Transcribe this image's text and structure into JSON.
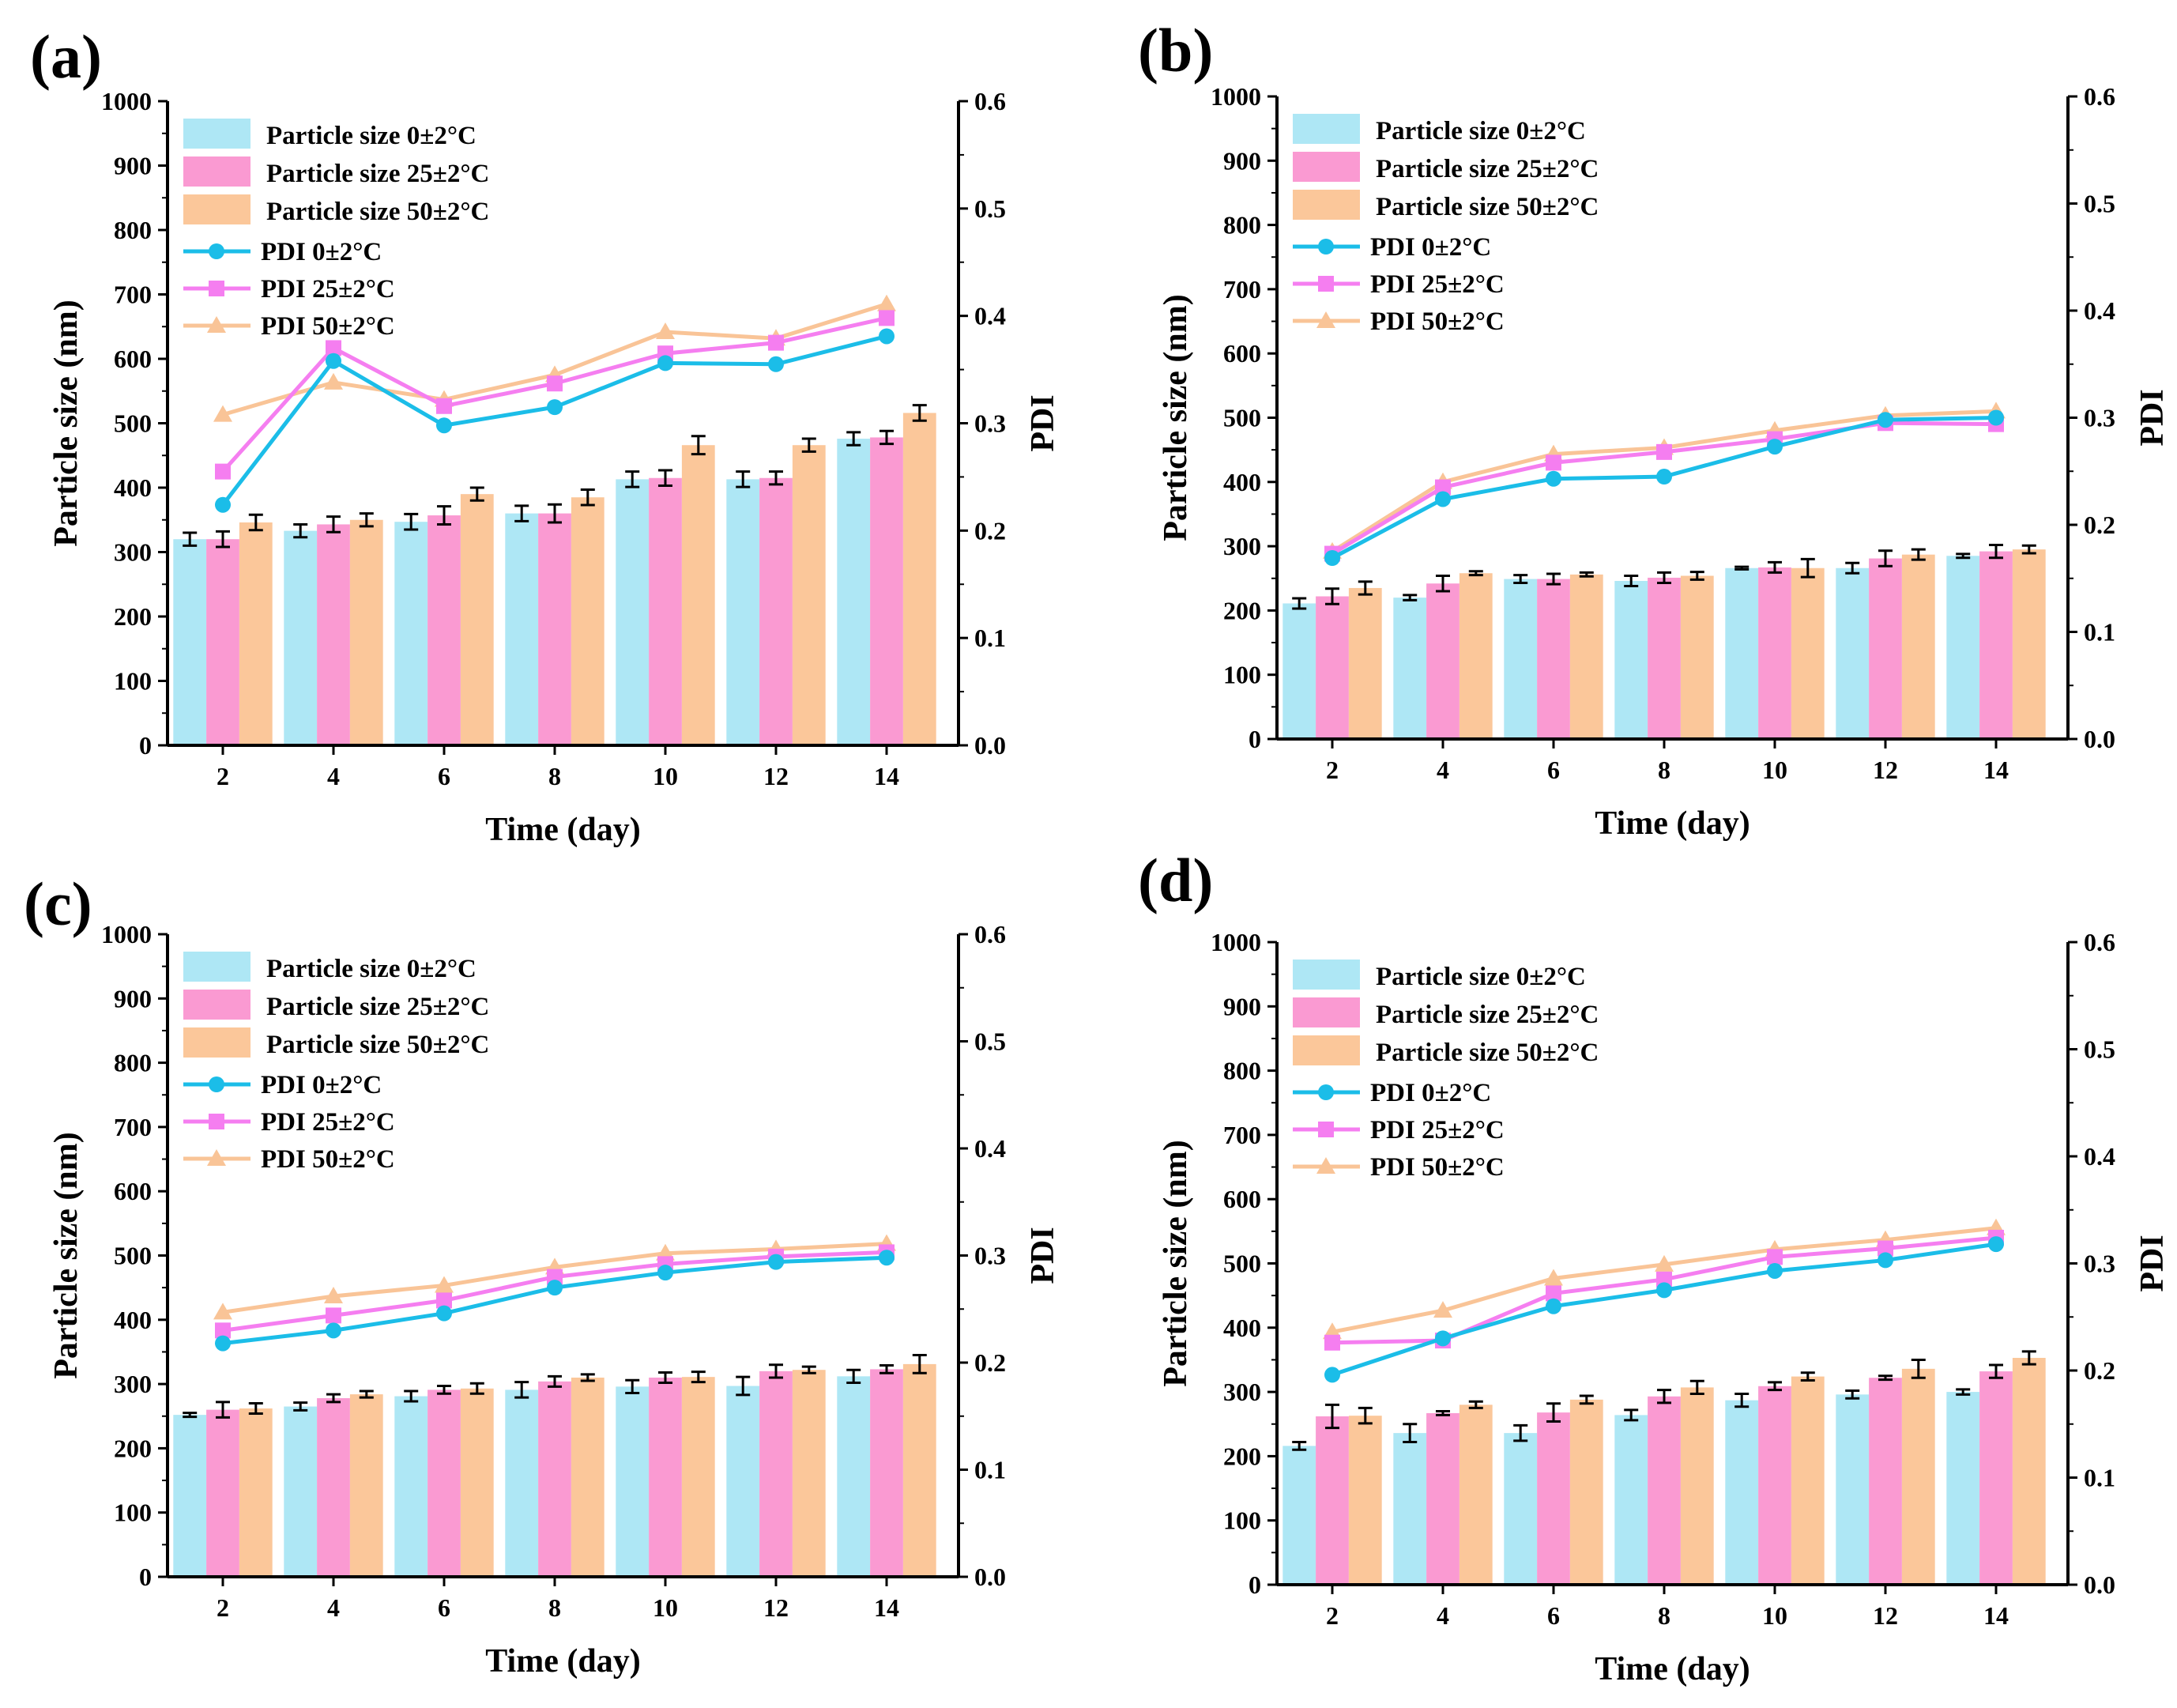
{
  "colors": {
    "ps0": "#aee7f5",
    "ps25": "#fa9ad2",
    "ps50": "#fbc79a",
    "pdi0": "#1bbde8",
    "pdi25": "#f57ef0",
    "pdi50": "#f9c497"
  },
  "chart_data": [
    {
      "panel_label": "(a)",
      "type": "bar+line",
      "xlabel": "Time (day)",
      "ylabel": "Particle size (nm)",
      "y2label": "PDI",
      "categories": [
        "2",
        "4",
        "6",
        "8",
        "10",
        "12",
        "14"
      ],
      "ylim": [
        0,
        1000
      ],
      "yticks": [
        "0",
        "100",
        "200",
        "300",
        "400",
        "500",
        "600",
        "700",
        "800",
        "900",
        "1000"
      ],
      "y2lim": [
        0,
        0.6
      ],
      "y2ticks": [
        "0.0",
        "0.1",
        "0.2",
        "0.3",
        "0.4",
        "0.5",
        "0.6"
      ],
      "bar_series": [
        {
          "name": "Particle size 0±2°C",
          "values": [
            320,
            333,
            347,
            360,
            413,
            413,
            476
          ],
          "errors": [
            10,
            10,
            12,
            12,
            12,
            12,
            10
          ]
        },
        {
          "name": "Particle size 25±2°C",
          "values": [
            320,
            343,
            357,
            360,
            415,
            415,
            478
          ],
          "errors": [
            12,
            12,
            14,
            14,
            12,
            10,
            10
          ]
        },
        {
          "name": "Particle size 50±2°C",
          "values": [
            346,
            350,
            390,
            385,
            466,
            466,
            516
          ],
          "errors": [
            12,
            10,
            10,
            12,
            14,
            10,
            12
          ]
        }
      ],
      "line_series": [
        {
          "name": "PDI 0±2°C",
          "values": [
            0.224,
            0.358,
            0.298,
            0.315,
            0.356,
            0.355,
            0.381
          ]
        },
        {
          "name": "PDI 25±2°C",
          "values": [
            0.255,
            0.37,
            0.316,
            0.337,
            0.365,
            0.375,
            0.398
          ]
        },
        {
          "name": "PDI 50±2°C",
          "values": [
            0.308,
            0.338,
            0.322,
            0.345,
            0.385,
            0.379,
            0.411
          ]
        }
      ]
    },
    {
      "panel_label": "(b)",
      "type": "bar+line",
      "xlabel": "Time (day)",
      "ylabel": "Particle size (nm)",
      "y2label": "PDI",
      "categories": [
        "2",
        "4",
        "6",
        "8",
        "10",
        "12",
        "14"
      ],
      "ylim": [
        0,
        1000
      ],
      "yticks": [
        "0",
        "100",
        "200",
        "300",
        "400",
        "500",
        "600",
        "700",
        "800",
        "900",
        "1000"
      ],
      "y2lim": [
        0,
        0.6
      ],
      "y2ticks": [
        "0.0",
        "0.1",
        "0.2",
        "0.3",
        "0.4",
        "0.5",
        "0.6"
      ],
      "bar_series": [
        {
          "name": "Particle size 0±2°C",
          "values": [
            211,
            220,
            249,
            246,
            266,
            266,
            285
          ],
          "errors": [
            8,
            4,
            6,
            8,
            2,
            8,
            3
          ]
        },
        {
          "name": "Particle size 25±2°C",
          "values": [
            222,
            242,
            249,
            251,
            267,
            281,
            292
          ],
          "errors": [
            12,
            12,
            8,
            8,
            8,
            12,
            10
          ]
        },
        {
          "name": "Particle size 50±2°C",
          "values": [
            235,
            258,
            256,
            254,
            266,
            287,
            295
          ],
          "errors": [
            10,
            3,
            3,
            6,
            14,
            8,
            6
          ]
        }
      ],
      "line_series": [
        {
          "name": "PDI 0±2°C",
          "values": [
            0.169,
            0.224,
            0.243,
            0.245,
            0.273,
            0.298,
            0.3
          ]
        },
        {
          "name": "PDI 25±2°C",
          "values": [
            0.173,
            0.235,
            0.258,
            0.268,
            0.28,
            0.295,
            0.294
          ]
        },
        {
          "name": "PDI 50±2°C",
          "values": [
            0.175,
            0.24,
            0.266,
            0.272,
            0.288,
            0.302,
            0.306
          ]
        }
      ]
    },
    {
      "panel_label": "(c)",
      "type": "bar+line",
      "xlabel": "Time (day)",
      "ylabel": "Particle size (nm)",
      "y2label": "PDI",
      "categories": [
        "2",
        "4",
        "6",
        "8",
        "10",
        "12",
        "14"
      ],
      "ylim": [
        0,
        1000
      ],
      "yticks": [
        "0",
        "100",
        "200",
        "300",
        "400",
        "500",
        "600",
        "700",
        "800",
        "900",
        "1000"
      ],
      "y2lim": [
        0,
        0.6
      ],
      "y2ticks": [
        "0.0",
        "0.1",
        "0.2",
        "0.3",
        "0.4",
        "0.5",
        "0.6"
      ],
      "bar_series": [
        {
          "name": "Particle size 0±2°C",
          "values": [
            252,
            265,
            281,
            291,
            296,
            297,
            312
          ],
          "errors": [
            3,
            6,
            8,
            12,
            10,
            14,
            10
          ]
        },
        {
          "name": "Particle size 25±2°C",
          "values": [
            260,
            278,
            291,
            304,
            310,
            320,
            323
          ],
          "errors": [
            12,
            6,
            6,
            8,
            8,
            10,
            6
          ]
        },
        {
          "name": "Particle size 50±2°C",
          "values": [
            262,
            284,
            293,
            310,
            311,
            322,
            331
          ],
          "errors": [
            8,
            5,
            8,
            5,
            8,
            5,
            14
          ]
        }
      ],
      "line_series": [
        {
          "name": "PDI 0±2°C",
          "values": [
            0.218,
            0.23,
            0.246,
            0.27,
            0.284,
            0.294,
            0.298
          ]
        },
        {
          "name": "PDI 25±2°C",
          "values": [
            0.23,
            0.244,
            0.258,
            0.28,
            0.292,
            0.299,
            0.303
          ]
        },
        {
          "name": "PDI 50±2°C",
          "values": [
            0.247,
            0.262,
            0.272,
            0.289,
            0.302,
            0.306,
            0.311
          ]
        }
      ]
    },
    {
      "panel_label": "(d)",
      "type": "bar+line",
      "xlabel": "Time (day)",
      "ylabel": "Particle size (nm)",
      "y2label": "PDI",
      "categories": [
        "2",
        "4",
        "6",
        "8",
        "10",
        "12",
        "14"
      ],
      "ylim": [
        0,
        1000
      ],
      "yticks": [
        "0",
        "100",
        "200",
        "300",
        "400",
        "500",
        "600",
        "700",
        "800",
        "900",
        "1000"
      ],
      "y2lim": [
        0,
        0.6
      ],
      "y2ticks": [
        "0.0",
        "0.1",
        "0.2",
        "0.3",
        "0.4",
        "0.5",
        "0.6"
      ],
      "bar_series": [
        {
          "name": "Particle size 0±2°C",
          "values": [
            216,
            236,
            236,
            264,
            287,
            296,
            300
          ],
          "errors": [
            6,
            14,
            12,
            8,
            10,
            6,
            4
          ]
        },
        {
          "name": "Particle size 25±2°C",
          "values": [
            262,
            267,
            268,
            293,
            309,
            322,
            332
          ],
          "errors": [
            18,
            3,
            14,
            10,
            6,
            3,
            10
          ]
        },
        {
          "name": "Particle size 50±2°C",
          "values": [
            263,
            280,
            288,
            307,
            324,
            336,
            353
          ],
          "errors": [
            12,
            5,
            6,
            10,
            6,
            14,
            10
          ]
        }
      ],
      "line_series": [
        {
          "name": "PDI 0±2°C",
          "values": [
            0.196,
            0.23,
            0.26,
            0.275,
            0.293,
            0.303,
            0.318
          ]
        },
        {
          "name": "PDI 25±2°C",
          "values": [
            0.226,
            0.228,
            0.272,
            0.285,
            0.306,
            0.314,
            0.324
          ]
        },
        {
          "name": "PDI 50±2°C",
          "values": [
            0.236,
            0.256,
            0.286,
            0.299,
            0.313,
            0.322,
            0.333
          ]
        }
      ]
    }
  ]
}
